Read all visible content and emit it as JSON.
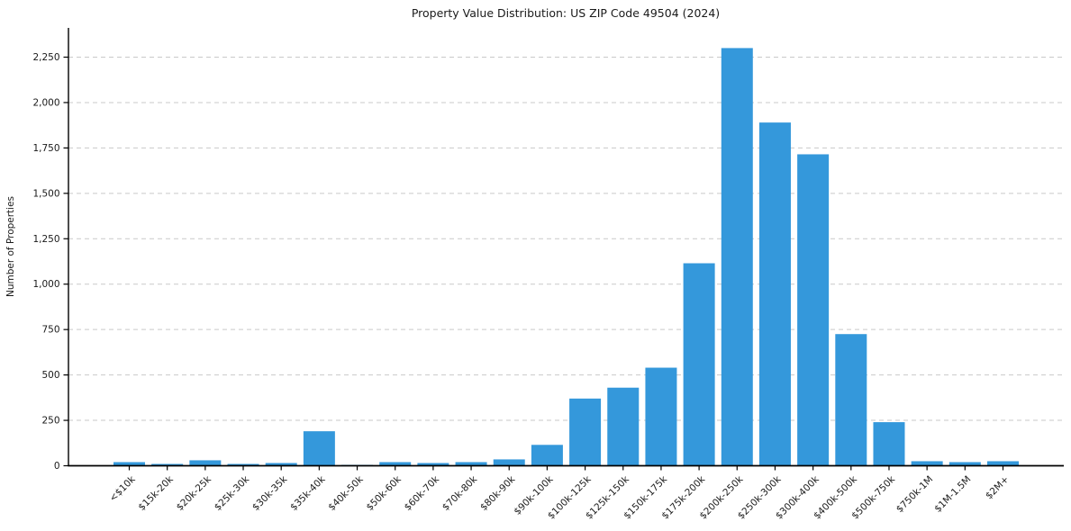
{
  "title": "Property Value Distribution: US ZIP Code 49504 (2024)",
  "chart_data": {
    "type": "bar",
    "title": "Property Value Distribution: US ZIP Code 49504 (2024)",
    "xlabel": "",
    "ylabel": "Number of Properties",
    "categories": [
      "<$10k",
      "$15k-20k",
      "$20k-25k",
      "$25k-30k",
      "$30k-35k",
      "$35k-40k",
      "$40k-50k",
      "$50k-60k",
      "$60k-70k",
      "$70k-80k",
      "$80k-90k",
      "$90k-100k",
      "$100k-125k",
      "$125k-150k",
      "$150k-175k",
      "$175k-200k",
      "$200k-250k",
      "$250k-300k",
      "$300k-400k",
      "$400k-500k",
      "$500k-750k",
      "$750k-1M",
      "$1M-1.5M",
      "$2M+"
    ],
    "values": [
      20,
      10,
      30,
      10,
      15,
      190,
      5,
      20,
      15,
      20,
      35,
      115,
      370,
      430,
      540,
      1115,
      2300,
      1890,
      1715,
      725,
      240,
      25,
      20,
      25
    ],
    "yticks": [
      0,
      250,
      500,
      750,
      1000,
      1250,
      1500,
      1750,
      2000,
      2250
    ],
    "ytick_labels": [
      "0",
      "250",
      "500",
      "750",
      "1,000",
      "1,250",
      "1,500",
      "1,750",
      "2,000",
      "2,250"
    ],
    "ylim": [
      0,
      2415
    ],
    "grid": "horizontal-dashed",
    "legend": "none",
    "bar_color": "#3498db",
    "grid_color": "#c9c9c9",
    "axis_color": "#000000",
    "text_color": "#1a1a1a",
    "background": "#ffffff"
  }
}
